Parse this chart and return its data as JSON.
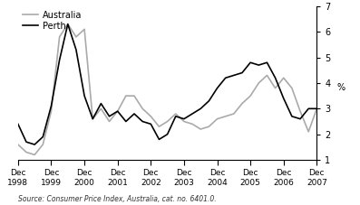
{
  "ylabel": "%",
  "source": "Source: Consumer Price Index, Australia, cat. no. 6401.0.",
  "ylim": [
    1,
    7
  ],
  "yticks": [
    1,
    2,
    3,
    4,
    5,
    6,
    7
  ],
  "x_labels": [
    "Dec\n1998",
    "Dec\n1999",
    "Dec\n2000",
    "Dec\n2001",
    "Dec\n2002",
    "Dec\n2003",
    "Dec\n2004",
    "Dec\n2005",
    "Dec\n2006",
    "Dec\n2007"
  ],
  "perth_x": [
    0,
    1,
    2,
    3,
    4,
    5,
    6,
    7,
    8,
    9,
    10,
    11,
    12,
    13,
    14,
    15,
    16,
    17,
    18,
    19,
    20,
    21,
    22,
    23,
    24,
    25,
    26,
    27,
    28,
    29,
    30,
    31,
    32,
    33,
    34,
    35,
    36
  ],
  "perth_y": [
    2.4,
    1.7,
    1.6,
    1.9,
    3.1,
    4.9,
    6.3,
    5.3,
    3.5,
    2.6,
    3.2,
    2.7,
    2.9,
    2.5,
    2.8,
    2.5,
    2.4,
    1.8,
    2.0,
    2.7,
    2.6,
    2.8,
    3.0,
    3.3,
    3.8,
    4.2,
    4.3,
    4.4,
    4.8,
    4.7,
    4.8,
    4.2,
    3.4,
    2.7,
    2.6,
    3.0,
    3.0
  ],
  "australia_x": [
    0,
    1,
    2,
    3,
    4,
    5,
    6,
    7,
    8,
    9,
    10,
    11,
    12,
    13,
    14,
    15,
    16,
    17,
    18,
    19,
    20,
    21,
    22,
    23,
    24,
    25,
    26,
    27,
    28,
    29,
    30,
    31,
    32,
    33,
    34,
    35,
    36
  ],
  "australia_y": [
    1.6,
    1.3,
    1.2,
    1.6,
    2.9,
    5.8,
    6.3,
    5.8,
    6.1,
    2.6,
    3.0,
    2.5,
    2.9,
    3.5,
    3.5,
    3.0,
    2.7,
    2.3,
    2.5,
    2.8,
    2.5,
    2.4,
    2.2,
    2.3,
    2.6,
    2.7,
    2.8,
    3.2,
    3.5,
    4.0,
    4.3,
    3.8,
    4.2,
    3.8,
    2.9,
    2.1,
    3.0
  ],
  "perth_color": "#000000",
  "australia_color": "#aaaaaa",
  "perth_label": "Perth",
  "australia_label": "Australia",
  "linewidth": 1.2,
  "x_tick_positions": [
    0,
    4,
    8,
    12,
    16,
    20,
    24,
    28,
    32,
    36
  ],
  "background_color": "#ffffff"
}
